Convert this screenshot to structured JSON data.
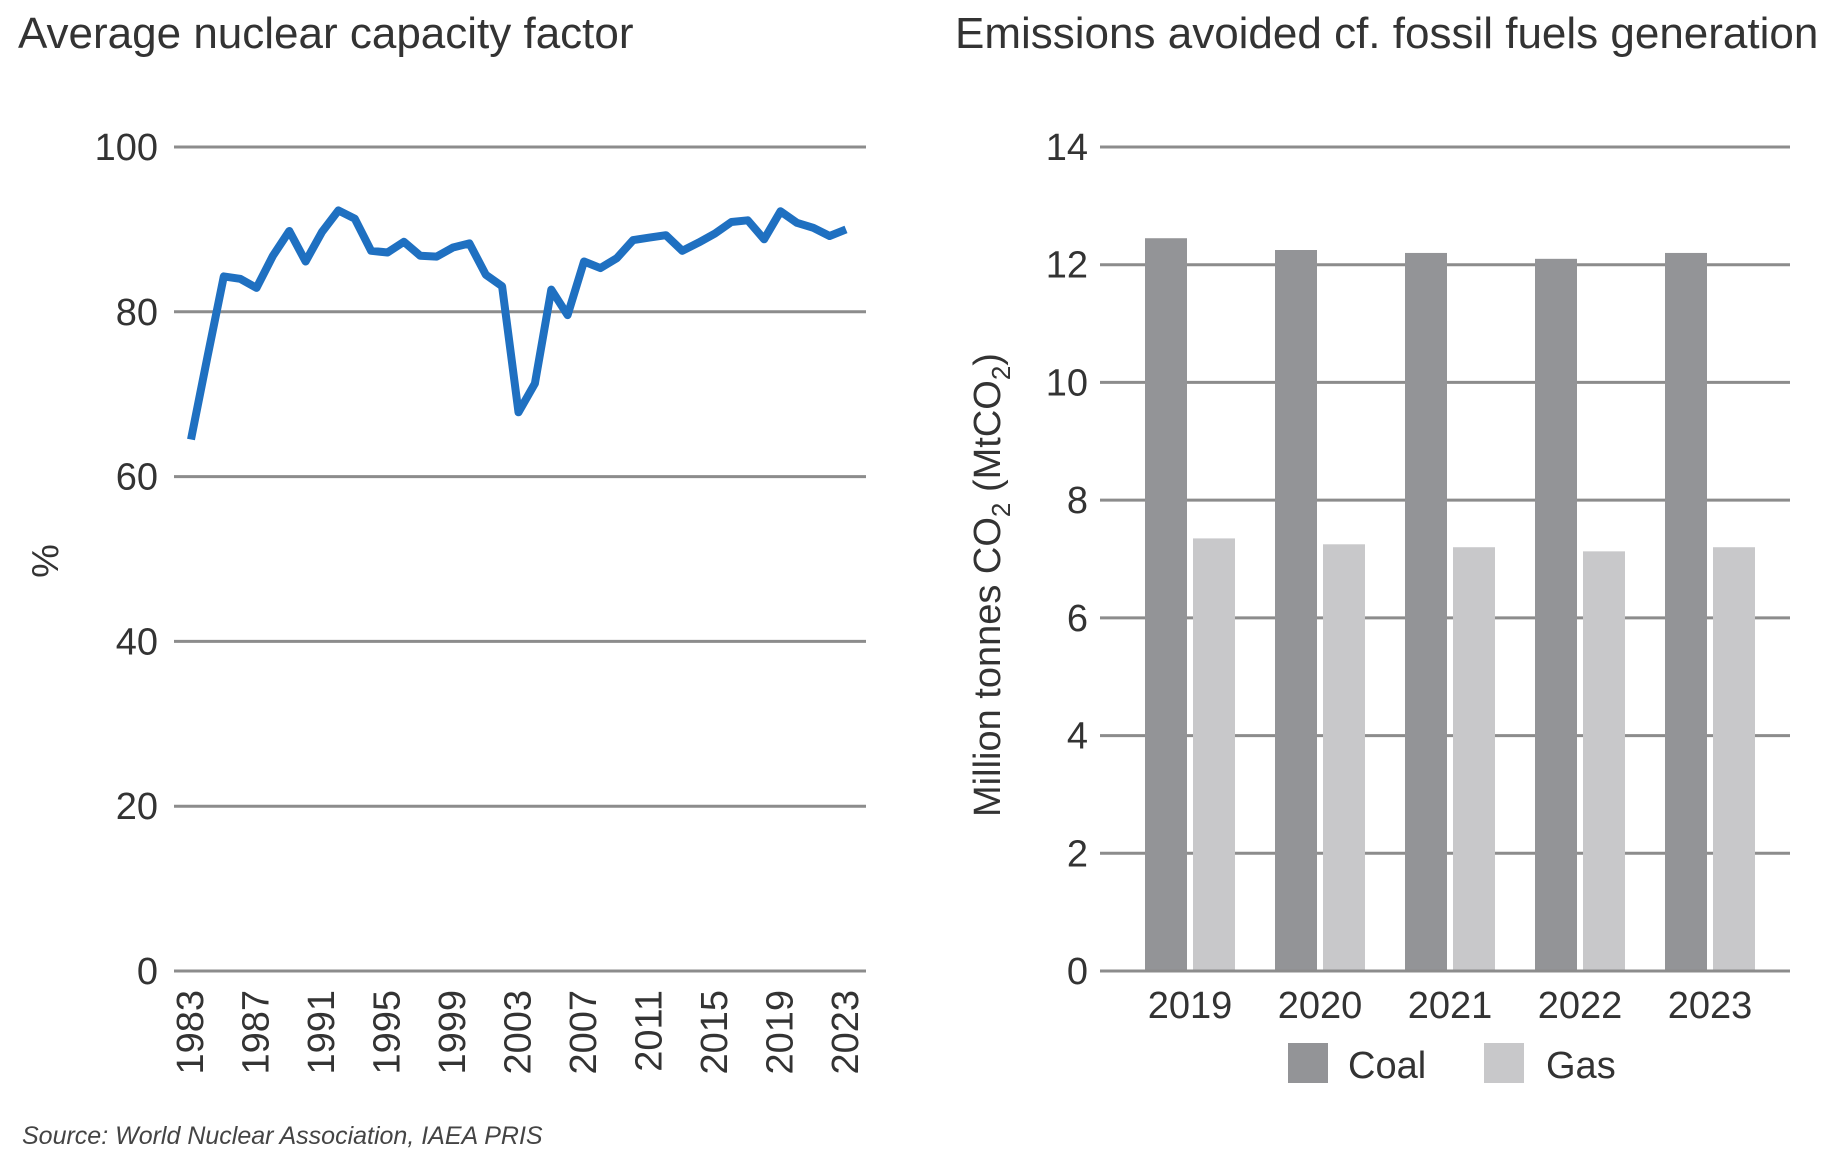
{
  "colors": {
    "line": "#1f70c1",
    "grid": "#8c8c8c",
    "coal": "#939497",
    "gas": "#c8c8ca",
    "text": "#333333"
  },
  "source": "Source: World Nuclear Association, IAEA PRIS",
  "chart_data": [
    {
      "type": "line",
      "title": "Average nuclear capacity factor",
      "ylabel": "%",
      "ylim": [
        0,
        100
      ],
      "yticks": [
        "0",
        "20",
        "40",
        "60",
        "80",
        "100"
      ],
      "xlim": [
        1983,
        2023
      ],
      "xticks": [
        "1983",
        "1987",
        "1991",
        "1995",
        "1999",
        "2003",
        "2007",
        "2011",
        "2015",
        "2019",
        "2023"
      ],
      "grid": true,
      "series": [
        {
          "x": [
            1983,
            1984,
            1985,
            1986,
            1987,
            1988,
            1989,
            1990,
            1991,
            1992,
            1993,
            1994,
            1995,
            1996,
            1997,
            1998,
            1999,
            2000,
            2001,
            2002,
            2003,
            2004,
            2005,
            2006,
            2007,
            2008,
            2009,
            2010,
            2011,
            2012,
            2013,
            2014,
            2015,
            2016,
            2017,
            2018,
            2019,
            2020,
            2021,
            2022,
            2023
          ],
          "values": [
            64.5,
            74.5,
            84.3,
            84,
            82.9,
            86.8,
            89.8,
            86.1,
            89.7,
            92.3,
            91.3,
            87.4,
            87.2,
            88.5,
            86.8,
            86.7,
            87.8,
            88.3,
            84.5,
            83.1,
            67.8,
            71.3,
            82.7,
            79.6,
            86.1,
            85.3,
            86.5,
            88.7,
            89,
            89.3,
            87.4,
            88.4,
            89.5,
            90.9,
            91.1,
            88.8,
            92.2,
            90.8,
            90.2,
            89.2,
            90
          ]
        }
      ]
    },
    {
      "type": "bar",
      "title": "Emissions avoided cf. fossil fuels generation",
      "ylabel_main": "Million tonnes CO",
      "ylabel_sub": "2",
      "ylabel_paren": " (MtCO",
      "ylabel_paren_sub": "2",
      "ylabel_close": ")",
      "ylim": [
        0,
        14
      ],
      "yticks": [
        "0",
        "2",
        "4",
        "6",
        "8",
        "10",
        "12",
        "14"
      ],
      "categories": [
        "2019",
        "2020",
        "2021",
        "2022",
        "2023"
      ],
      "grid": true,
      "legend": "bottom",
      "series": [
        {
          "name": "Coal",
          "values": [
            12.45,
            12.25,
            12.2,
            12.1,
            12.2
          ]
        },
        {
          "name": "Gas",
          "values": [
            7.35,
            7.25,
            7.2,
            7.13,
            7.2
          ]
        }
      ]
    }
  ]
}
